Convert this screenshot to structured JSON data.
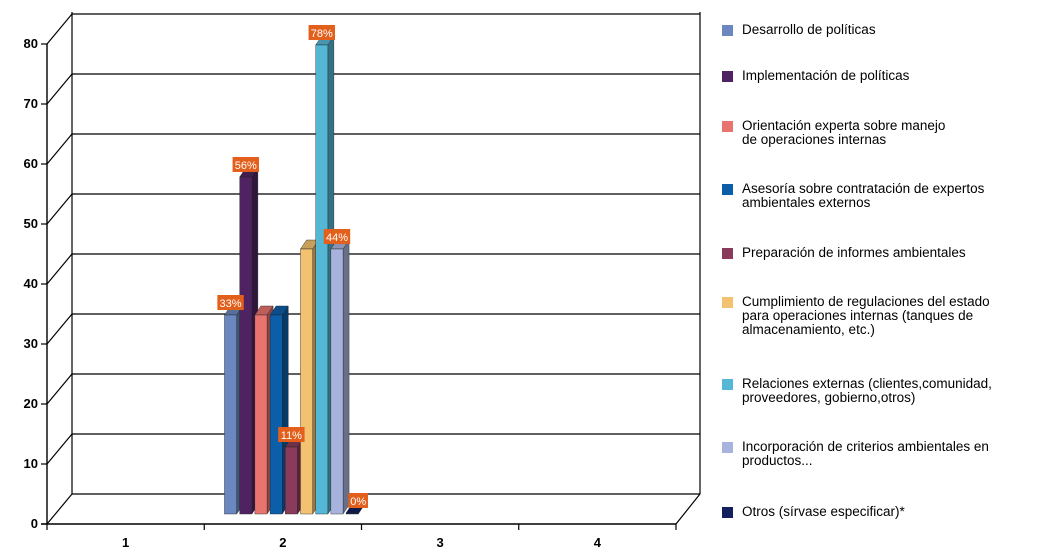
{
  "colors": {
    "background": "#ffffff",
    "gridline": "#000000",
    "label_box": "#e35f1c",
    "label_text": "#ffffff"
  },
  "chart_data": {
    "type": "bar",
    "style": "3d-clustered-column",
    "categories": [
      "1",
      "2",
      "3",
      "4"
    ],
    "ylim": [
      0,
      80
    ],
    "yticks": [
      0,
      10,
      20,
      30,
      40,
      50,
      60,
      70,
      80
    ],
    "grid": true,
    "legend_position": "right",
    "series": [
      {
        "name": "Desarrollo de políticas",
        "color": "#6a87c0",
        "values": [
          null,
          33,
          null,
          null
        ],
        "label": "33%"
      },
      {
        "name": "Implementación de políticas",
        "color": "#4f2361",
        "values": [
          null,
          56,
          null,
          null
        ],
        "label": "56%"
      },
      {
        "name": "Orientación experta sobre manejo\nde operaciones internas",
        "color": "#e8736f",
        "values": [
          null,
          33,
          null,
          null
        ],
        "label": null
      },
      {
        "name": "Asesoría sobre  contratación de expertos\nambientales externos",
        "color": "#0d5ea8",
        "values": [
          null,
          33,
          null,
          null
        ],
        "label": null
      },
      {
        "name": "Preparación de informes ambientales",
        "color": "#8a3a5a",
        "values": [
          null,
          11,
          null,
          null
        ],
        "label": "11%"
      },
      {
        "name": "Cumplimiento de regulaciones del estado\npara operaciones internas (tanques de\nalmacenamiento, etc.)",
        "color": "#f3c270",
        "values": [
          null,
          44,
          null,
          null
        ],
        "label": null
      },
      {
        "name": "Relaciones externas (clientes,comunidad,\nproveedores, gobierno,otros)",
        "color": "#55b7d6",
        "values": [
          null,
          78,
          null,
          null
        ],
        "label": "78%"
      },
      {
        "name": "Incorporación de criterios ambientales en\nproductos...",
        "color": "#a7b3dc",
        "values": [
          null,
          44,
          null,
          null
        ],
        "label": "44%"
      },
      {
        "name": "Otros (sírvase especificar)*",
        "color": "#12205e",
        "values": [
          null,
          0,
          null,
          null
        ],
        "label": "0%"
      }
    ]
  }
}
